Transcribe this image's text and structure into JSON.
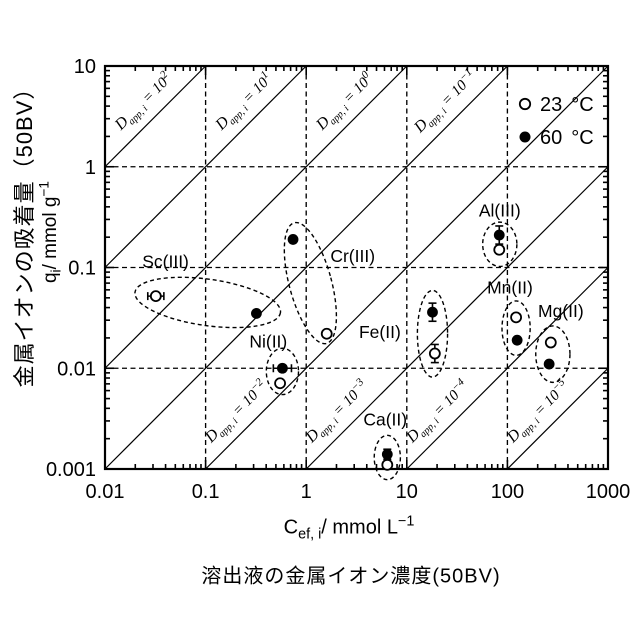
{
  "figure": {
    "y_title": "金属イオンの吸着量（50BV）",
    "y_unit": {
      "base": "q",
      "sub": "i",
      "mid": "/ mmol g",
      "sup": "−1"
    },
    "x_title": {
      "base": "C",
      "sub": "ef, i",
      "mid": "/ mmol L",
      "sup": "−1"
    },
    "caption": "溶出液の金属イオン濃度(50BV)"
  },
  "legend": {
    "items": [
      {
        "marker": "open",
        "value": "23",
        "unit": "°C"
      },
      {
        "marker": "filled",
        "value": "60",
        "unit": "°C"
      }
    ]
  },
  "chart_data": {
    "type": "scatter",
    "title": "",
    "xlabel": "C_ef,i / mmol L^-1 (溶出液の金属イオン濃度(50BV))",
    "ylabel": "q_i / mmol g^-1 (金属イオンの吸着量(50BV))",
    "x_axis": {
      "scale": "log",
      "min": 0.01,
      "max": 1000,
      "ticks": [
        "0.01",
        "0.1",
        "1",
        "10",
        "100",
        "1000"
      ]
    },
    "y_axis": {
      "scale": "log",
      "min": 0.001,
      "max": 10,
      "ticks": [
        "10",
        "1",
        "0.1",
        "0.01",
        "0.001"
      ]
    },
    "grid": "dashed-major",
    "legend_position": "top-right-inside",
    "series": [
      {
        "key": "23",
        "name": "23 °C",
        "marker": "open-circle"
      },
      {
        "key": "60",
        "name": "60 °C",
        "marker": "filled-circle"
      }
    ],
    "diagonal_isolines": {
      "label_var": "D",
      "label_sub": "app, i",
      "label_eq": " = 10",
      "exponents": [
        2,
        1,
        0,
        -1,
        -2,
        -3,
        -4,
        -5
      ]
    },
    "groups": [
      {
        "name": "Sc(III)",
        "label_at": {
          "c": 0.04,
          "q": 0.115
        },
        "ellipse": {
          "c": 0.105,
          "q": 0.045,
          "rx_dec": 0.73,
          "ry_dec": 0.23,
          "rot": 8
        },
        "points": [
          {
            "series": "23",
            "c": 0.032,
            "q": 0.052,
            "err": {
              "axis": "x",
              "dec": 0.08
            }
          },
          {
            "series": "60",
            "c": 0.32,
            "q": 0.035
          }
        ]
      },
      {
        "name": "Cr(III)",
        "label_at": {
          "c": 2.9,
          "q": 0.13
        },
        "ellipse": {
          "c": 1.1,
          "q": 0.07,
          "rx_dec": 0.21,
          "ry_dec": 0.62,
          "rot": -15
        },
        "points": [
          {
            "series": "60",
            "c": 0.74,
            "q": 0.19
          },
          {
            "series": "23",
            "c": 1.6,
            "q": 0.022
          }
        ]
      },
      {
        "name": "Ni(II)",
        "label_at": {
          "c": 0.42,
          "q": 0.0185
        },
        "ellipse": {
          "c": 0.58,
          "q": 0.0093,
          "rx_dec": 0.16,
          "ry_dec": 0.23,
          "rot": 0
        },
        "points": [
          {
            "series": "60",
            "c": 0.58,
            "q": 0.01,
            "err": {
              "axis": "x",
              "dec": 0.09
            }
          },
          {
            "series": "23",
            "c": 0.55,
            "q": 0.0071
          }
        ]
      },
      {
        "name": "Fe(II)",
        "label_at": {
          "c": 5.4,
          "q": 0.023
        },
        "ellipse": {
          "c": 18,
          "q": 0.022,
          "rx_dec": 0.15,
          "ry_dec": 0.43,
          "rot": 0
        },
        "points": [
          {
            "series": "60",
            "c": 18,
            "q": 0.036,
            "err": {
              "axis": "y",
              "dec": 0.09
            }
          },
          {
            "series": "23",
            "c": 19,
            "q": 0.014,
            "err": {
              "axis": "y",
              "dec": 0.09
            }
          }
        ]
      },
      {
        "name": "Al(III)",
        "label_at": {
          "c": 84,
          "q": 0.37
        },
        "ellipse": {
          "c": 84,
          "q": 0.17,
          "rx_dec": 0.17,
          "ry_dec": 0.22,
          "rot": 0
        },
        "points": [
          {
            "series": "60",
            "c": 83,
            "q": 0.21,
            "err": {
              "axis": "y",
              "dec": 0.09
            }
          },
          {
            "series": "23",
            "c": 83,
            "q": 0.15
          }
        ]
      },
      {
        "name": "Mn(II)",
        "label_at": {
          "c": 106,
          "q": 0.063
        },
        "ellipse": {
          "c": 122,
          "q": 0.025,
          "rx_dec": 0.14,
          "ry_dec": 0.27,
          "rot": 0
        },
        "points": [
          {
            "series": "23",
            "c": 122,
            "q": 0.032
          },
          {
            "series": "60",
            "c": 125,
            "q": 0.019
          }
        ]
      },
      {
        "name": "Mg(II)",
        "label_at": {
          "c": 340,
          "q": 0.037
        },
        "ellipse": {
          "c": 283,
          "q": 0.0138,
          "rx_dec": 0.17,
          "ry_dec": 0.28,
          "rot": 0
        },
        "points": [
          {
            "series": "23",
            "c": 270,
            "q": 0.018
          },
          {
            "series": "60",
            "c": 260,
            "q": 0.011
          }
        ]
      },
      {
        "name": "Ca(II)",
        "label_at": {
          "c": 6.1,
          "q": 0.0031
        },
        "ellipse": {
          "c": 6.4,
          "q": 0.0013,
          "rx_dec": 0.13,
          "ry_dec": 0.22,
          "rot": 0
        },
        "points": [
          {
            "series": "60",
            "c": 6.4,
            "q": 0.0014,
            "err": {
              "axis": "y",
              "dec": 0.05
            }
          },
          {
            "series": "23",
            "c": 6.4,
            "q": 0.0011
          }
        ]
      }
    ]
  }
}
